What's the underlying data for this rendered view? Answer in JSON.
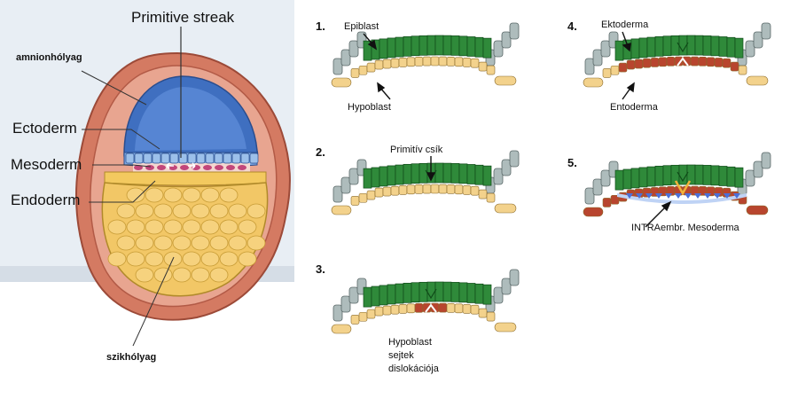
{
  "colors": {
    "panel_bg": "#e8eef4",
    "yolk": "#f2c766",
    "amnion": "#4b7fc8",
    "wall": "#c8705a",
    "epiblast_green": "#2f8a3a",
    "hypoblast_yellow": "#f3d28c",
    "gray_cells": "#aebcbc",
    "entoderm_red": "#b8452e",
    "mesoderm_blue": "#4a6fd8"
  },
  "left_diagram": {
    "primitive_streak": "Primitive streak",
    "amnion": "amnionhólyag",
    "ectoderm": "Ectoderm",
    "mesoderm": "Mesoderm",
    "endoderm": "Endoderm",
    "yolk_sac": "szikhólyag"
  },
  "panels": [
    {
      "number": "1.",
      "labels": [
        "Epiblast",
        "Hypoblast"
      ]
    },
    {
      "number": "2.",
      "labels": [
        "Primitív csík"
      ]
    },
    {
      "number": "3.",
      "labels": [
        "Hypoblast\nsejtek\ndislokációja"
      ]
    },
    {
      "number": "4.",
      "labels": [
        "Ektoderma",
        "Entoderma"
      ]
    },
    {
      "number": "5.",
      "labels": [
        "INTRAembr. Mesoderma"
      ]
    }
  ]
}
